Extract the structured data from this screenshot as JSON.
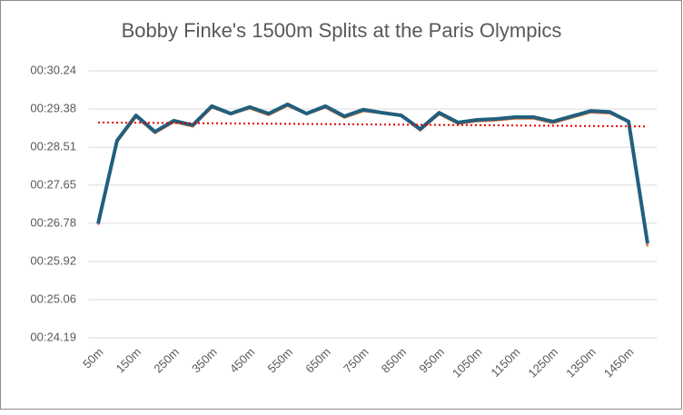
{
  "chart_data": {
    "type": "line",
    "title": "Bobby Finke's 1500m Splits at the Paris Olympics",
    "categories": [
      "50m",
      null,
      "150m",
      null,
      "250m",
      null,
      "350m",
      null,
      "450m",
      null,
      "550m",
      null,
      "650m",
      null,
      "750m",
      null,
      "850m",
      null,
      "950m",
      null,
      "1050m",
      null,
      "1150m",
      null,
      "1250m",
      null,
      "1350m",
      null,
      "1450m",
      null
    ],
    "series": [
      {
        "color": "#e97132",
        "values": [
          26.78,
          28.66,
          29.23,
          28.86,
          29.11,
          29.01,
          29.44,
          29.29,
          29.42,
          29.27,
          29.48,
          29.29,
          29.44,
          29.21,
          29.36,
          29.31,
          29.25,
          28.92,
          29.29,
          29.07,
          29.13,
          29.15,
          29.19,
          29.19,
          29.09,
          29.21,
          29.33,
          29.31,
          29.11,
          26.29
        ]
      },
      {
        "color": "#215f7e",
        "values": [
          26.78,
          28.66,
          29.23,
          28.86,
          29.11,
          29.01,
          29.44,
          29.27,
          29.42,
          29.27,
          29.48,
          29.27,
          29.44,
          29.21,
          29.36,
          29.29,
          29.23,
          28.92,
          29.29,
          29.07,
          29.13,
          29.15,
          29.19,
          29.19,
          29.09,
          29.21,
          29.33,
          29.31,
          29.09,
          26.33
        ]
      }
    ],
    "trendline": {
      "type": "linear",
      "color": "#e00000",
      "values": [
        29.07,
        28.98
      ]
    },
    "ylim": [
      24.19,
      30.24
    ],
    "yticks": [
      {
        "value": 24.19,
        "label": "00:24.19"
      },
      {
        "value": 25.055,
        "label": "00:25.06"
      },
      {
        "value": 25.92,
        "label": "00:25.92"
      },
      {
        "value": 26.785,
        "label": "00:26.78"
      },
      {
        "value": 27.65,
        "label": "00:27.65"
      },
      {
        "value": 28.51,
        "label": "00:28.51"
      },
      {
        "value": 29.375,
        "label": "00:29.38"
      },
      {
        "value": 30.24,
        "label": "00:30.24"
      }
    ],
    "grid": true
  }
}
